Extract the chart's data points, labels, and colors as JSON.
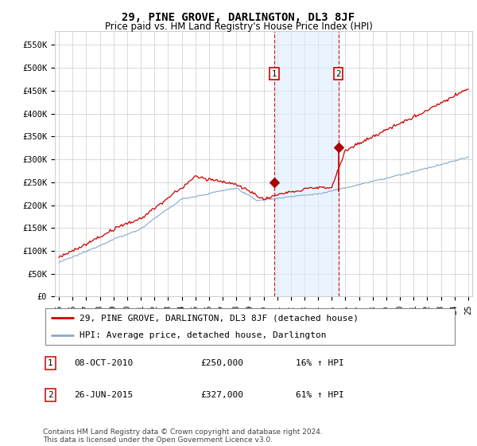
{
  "title": "29, PINE GROVE, DARLINGTON, DL3 8JF",
  "subtitle": "Price paid vs. HM Land Registry's House Price Index (HPI)",
  "y_ticks": [
    0,
    50000,
    100000,
    150000,
    200000,
    250000,
    300000,
    350000,
    400000,
    450000,
    500000,
    550000
  ],
  "y_tick_labels": [
    "£0",
    "£50K",
    "£100K",
    "£150K",
    "£200K",
    "£250K",
    "£300K",
    "£350K",
    "£400K",
    "£450K",
    "£500K",
    "£550K"
  ],
  "ylim": [
    0,
    580000
  ],
  "xlim_start": 1994.7,
  "xlim_end": 2025.3,
  "marker1_date": 2010.77,
  "marker1_price": 250000,
  "marker1_label": "1",
  "marker2_date": 2015.48,
  "marker2_price": 327000,
  "marker2_label": "2",
  "legend_house_label": "29, PINE GROVE, DARLINGTON, DL3 8JF (detached house)",
  "legend_hpi_label": "HPI: Average price, detached house, Darlington",
  "footer": "Contains HM Land Registry data © Crown copyright and database right 2024.\nThis data is licensed under the Open Government Licence v3.0.",
  "house_line_color": "#cc0000",
  "hpi_line_color": "#88aacc",
  "marker_dot_color": "#aa0000",
  "background_color": "#ffffff",
  "grid_color": "#cccccc",
  "highlight_color": "#ddeeff",
  "title_fontsize": 10,
  "subtitle_fontsize": 8.5,
  "tick_fontsize": 7.5,
  "legend_fontsize": 8,
  "annotation_fontsize": 8,
  "footer_fontsize": 6.5
}
